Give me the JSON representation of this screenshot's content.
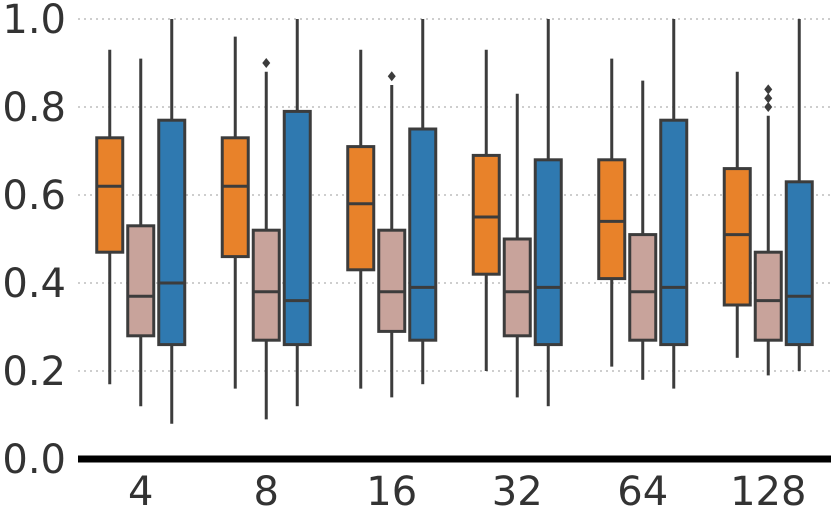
{
  "chart_data": {
    "type": "box",
    "title": "",
    "xlabel": "",
    "ylabel": "",
    "ylim": [
      0.0,
      1.0
    ],
    "yticks": [
      "0.0",
      "0.2",
      "0.4",
      "0.6",
      "0.8",
      "1.0"
    ],
    "grid": "horizontal dotted",
    "legend": "none",
    "categories": [
      "4",
      "8",
      "16",
      "32",
      "64",
      "128"
    ],
    "series": [
      {
        "color": "#e8822a",
        "boxes": [
          {
            "whislo": 0.17,
            "q1": 0.47,
            "med": 0.62,
            "q3": 0.73,
            "whishi": 0.93,
            "fliers": []
          },
          {
            "whislo": 0.16,
            "q1": 0.46,
            "med": 0.62,
            "q3": 0.73,
            "whishi": 0.96,
            "fliers": []
          },
          {
            "whislo": 0.16,
            "q1": 0.43,
            "med": 0.58,
            "q3": 0.71,
            "whishi": 0.93,
            "fliers": []
          },
          {
            "whislo": 0.2,
            "q1": 0.42,
            "med": 0.55,
            "q3": 0.69,
            "whishi": 0.93,
            "fliers": []
          },
          {
            "whislo": 0.21,
            "q1": 0.41,
            "med": 0.54,
            "q3": 0.68,
            "whishi": 0.91,
            "fliers": []
          },
          {
            "whislo": 0.23,
            "q1": 0.35,
            "med": 0.51,
            "q3": 0.66,
            "whishi": 0.88,
            "fliers": []
          }
        ]
      },
      {
        "color": "#c8a39b",
        "boxes": [
          {
            "whislo": 0.12,
            "q1": 0.28,
            "med": 0.37,
            "q3": 0.53,
            "whishi": 0.91,
            "fliers": []
          },
          {
            "whislo": 0.09,
            "q1": 0.27,
            "med": 0.38,
            "q3": 0.52,
            "whishi": 0.88,
            "fliers": [
              0.9
            ]
          },
          {
            "whislo": 0.14,
            "q1": 0.29,
            "med": 0.38,
            "q3": 0.52,
            "whishi": 0.85,
            "fliers": [
              0.87
            ]
          },
          {
            "whislo": 0.14,
            "q1": 0.28,
            "med": 0.38,
            "q3": 0.5,
            "whishi": 0.83,
            "fliers": []
          },
          {
            "whislo": 0.18,
            "q1": 0.27,
            "med": 0.38,
            "q3": 0.51,
            "whishi": 0.86,
            "fliers": []
          },
          {
            "whislo": 0.19,
            "q1": 0.27,
            "med": 0.36,
            "q3": 0.47,
            "whishi": 0.78,
            "fliers": [
              0.8,
              0.82,
              0.84
            ]
          }
        ]
      },
      {
        "color": "#2f79b0",
        "boxes": [
          {
            "whislo": 0.08,
            "q1": 0.26,
            "med": 0.4,
            "q3": 0.77,
            "whishi": 1.0,
            "fliers": []
          },
          {
            "whislo": 0.12,
            "q1": 0.26,
            "med": 0.36,
            "q3": 0.79,
            "whishi": 1.0,
            "fliers": []
          },
          {
            "whislo": 0.17,
            "q1": 0.27,
            "med": 0.39,
            "q3": 0.75,
            "whishi": 1.0,
            "fliers": []
          },
          {
            "whislo": 0.12,
            "q1": 0.26,
            "med": 0.39,
            "q3": 0.68,
            "whishi": 1.0,
            "fliers": []
          },
          {
            "whislo": 0.16,
            "q1": 0.26,
            "med": 0.39,
            "q3": 0.77,
            "whishi": 1.0,
            "fliers": []
          },
          {
            "whislo": 0.2,
            "q1": 0.26,
            "med": 0.37,
            "q3": 0.63,
            "whishi": 1.0,
            "fliers": []
          }
        ]
      }
    ]
  }
}
